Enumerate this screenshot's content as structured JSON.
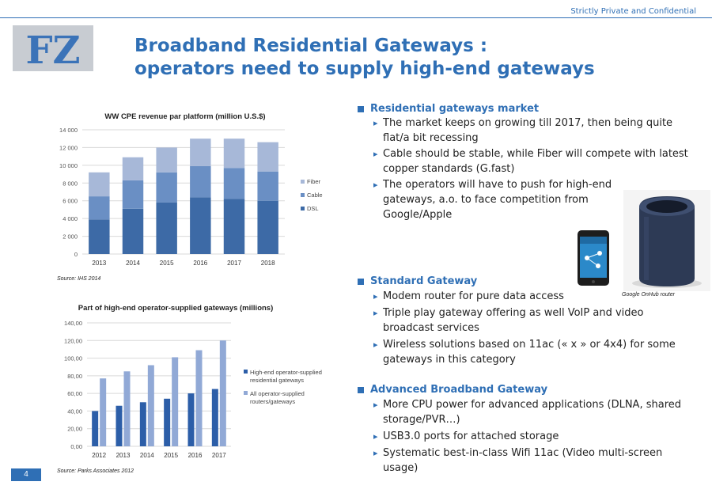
{
  "header": {
    "confidential": "Strictly Private and Confidential",
    "logo_text": "FZ"
  },
  "title": {
    "line1": "Broadband Residential Gateways :",
    "line2": "operators need to supply high-end gateways"
  },
  "chart1": {
    "title": "WW CPE revenue par platform (million U.S.$)",
    "source": "Source: IHS 2014",
    "colors": {
      "Fiber": "#a7b8d8",
      "Cable": "#6a8fc4",
      "DSL": "#3d6aa6",
      "grid": "#d9d9d9"
    },
    "tick_labels": [
      "0",
      "2 000",
      "4 000",
      "6 000",
      "8 000",
      "10 000",
      "12 000",
      "14 000"
    ]
  },
  "chart2": {
    "title": "Part of high-end operator-supplied gateways (millions)",
    "source": "Source: Parks Associates 2012",
    "colors": {
      "high_end": "#2c5ea8",
      "all": "#91a9d6",
      "grid": "#d9d9d9"
    },
    "tick_labels": [
      "0,00",
      "20,00",
      "40,00",
      "60,00",
      "80,00",
      "100,00",
      "120,00",
      "140,00"
    ],
    "legend": [
      {
        "line1": "High-end operator-supplied",
        "line2": "residential gateways"
      },
      {
        "line1": "All operator-supplied",
        "line2": "routers/gateways"
      }
    ]
  },
  "chart_data": [
    {
      "type": "bar",
      "stacked": true,
      "title": "WW CPE revenue par platform (million U.S.$)",
      "categories": [
        "2013",
        "2014",
        "2015",
        "2016",
        "2017",
        "2018"
      ],
      "series": [
        {
          "name": "DSL",
          "values": [
            3900,
            5100,
            5800,
            6400,
            6200,
            6000
          ]
        },
        {
          "name": "Cable",
          "values": [
            2600,
            3200,
            3400,
            3500,
            3500,
            3300
          ]
        },
        {
          "name": "Fiber",
          "values": [
            2700,
            2600,
            2800,
            3100,
            3300,
            3300
          ]
        }
      ],
      "ylim": [
        0,
        14000
      ],
      "grid": true,
      "legend": "right"
    },
    {
      "type": "bar",
      "title": "Part of high-end operator-supplied gateways (millions)",
      "categories": [
        "2012",
        "2013",
        "2014",
        "2015",
        "2016",
        "2017"
      ],
      "series": [
        {
          "name": "High-end operator-supplied residential gateways",
          "values": [
            40,
            46,
            50,
            54,
            60,
            65
          ]
        },
        {
          "name": "All operator-supplied routers/gateways",
          "values": [
            77,
            85,
            92,
            101,
            109,
            120
          ]
        }
      ],
      "ylim": [
        0,
        140
      ],
      "grid": true,
      "legend": "right"
    }
  ],
  "sections": [
    {
      "heading": "Residential gateways market",
      "bullets": [
        "The market keeps on growing till 2017, then being quite flat/a bit recessing",
        "Cable should be stable, while Fiber will compete with latest copper standards (G.fast)",
        "The operators will have to push for high-end gateways, a.o. to face competition from Google/Apple"
      ]
    },
    {
      "heading": "Standard Gateway",
      "bullets": [
        "Modem router for pure data access",
        "Triple play gateway offering as well VoIP and video broadcast services",
        "Wireless solutions based on 11ac (« x » or 4x4) for some gateways in this category"
      ]
    },
    {
      "heading": "Advanced Broadband Gateway",
      "bullets": [
        "More CPU power for advanced applications (DLNA, shared storage/PVR…)",
        "USB3.0 ports for attached storage",
        "Systematic best-in-class Wifi 11ac (Video multi-screen usage)"
      ]
    }
  ],
  "router_caption": "Google OnHub router",
  "page_number": "4"
}
